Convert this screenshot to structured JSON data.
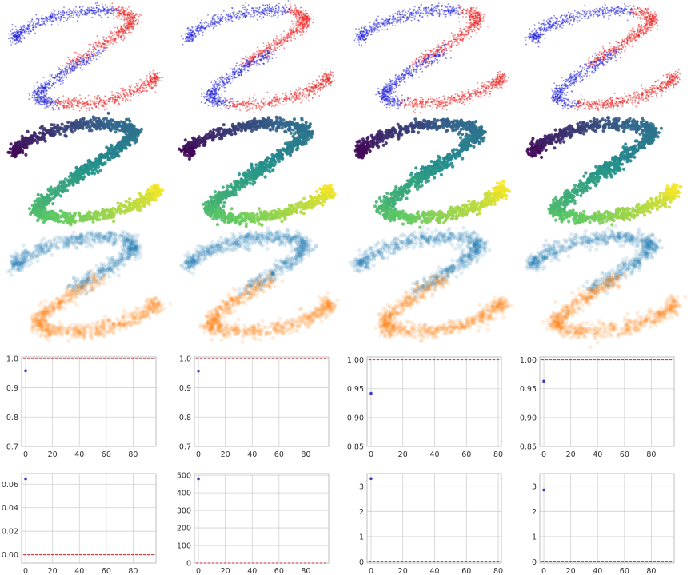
{
  "colors": {
    "red_class": "#ee2222",
    "blue_class": "#2222dd",
    "viridis": [
      "#440154",
      "#31688e",
      "#21918c",
      "#5ec962",
      "#fde725"
    ],
    "tab_blue": "#1f77b4",
    "tab_orange": "#ff7f0e",
    "point_marker": "#3a3ac8",
    "reference_line": "#d62728",
    "grid": "#d0d0d0"
  },
  "scatter_rows": [
    {
      "style": "interleaved-spirals-red-blue",
      "panels": 4
    },
    {
      "style": "spiral-gradient-viridis",
      "panels": 4
    },
    {
      "style": "spiral-two-class-tab10-translucent",
      "panels": 4
    }
  ],
  "chart_data": [
    {
      "type": "scatter",
      "row": "accuracy",
      "col": 0,
      "x": [
        0
      ],
      "y": [
        0.958
      ],
      "hline": 1.0,
      "xlim": [
        -3,
        97
      ],
      "ylim": [
        0.7,
        1.005
      ],
      "xticks": [
        "0",
        "20",
        "40",
        "60",
        "80"
      ],
      "yticks": [
        "0.7",
        "0.8",
        "0.9",
        "1.0"
      ],
      "grid": true
    },
    {
      "type": "scatter",
      "row": "accuracy",
      "col": 1,
      "x": [
        0
      ],
      "y": [
        0.957
      ],
      "hline": 1.0,
      "xlim": [
        -3,
        97
      ],
      "ylim": [
        0.7,
        1.005
      ],
      "xticks": [
        "0",
        "20",
        "40",
        "60",
        "80"
      ],
      "yticks": [
        "0.7",
        "0.8",
        "0.9",
        "1.0"
      ],
      "grid": true
    },
    {
      "type": "scatter",
      "row": "accuracy",
      "col": 2,
      "x": [
        0
      ],
      "y": [
        0.942
      ],
      "hline": 1.0,
      "xlim": [
        -2.5,
        82
      ],
      "ylim": [
        0.85,
        1.005
      ],
      "xticks": [
        "0",
        "20",
        "40",
        "60",
        "80"
      ],
      "yticks": [
        "0.85",
        "0.90",
        "0.95",
        "1.00"
      ],
      "grid": true
    },
    {
      "type": "scatter",
      "row": "accuracy",
      "col": 3,
      "x": [
        0
      ],
      "y": [
        0.963
      ],
      "hline": 1.0,
      "xlim": [
        -3,
        97
      ],
      "ylim": [
        0.85,
        1.005
      ],
      "xticks": [
        "0",
        "20",
        "40",
        "60",
        "80"
      ],
      "yticks": [
        "0.85",
        "0.90",
        "0.95",
        "1.00"
      ],
      "grid": true
    },
    {
      "type": "scatter",
      "row": "loss",
      "col": 0,
      "x": [
        0
      ],
      "y": [
        0.0645
      ],
      "hline": 0.0,
      "xlim": [
        -3,
        97
      ],
      "ylim": [
        -0.007,
        0.069
      ],
      "xticks": [
        "0",
        "20",
        "40",
        "60",
        "80"
      ],
      "yticks": [
        "0.00",
        "0.02",
        "0.04",
        "0.06"
      ],
      "grid": true
    },
    {
      "type": "scatter",
      "row": "loss",
      "col": 1,
      "x": [
        0
      ],
      "y": [
        480
      ],
      "hline": 0.0,
      "xlim": [
        -3,
        97
      ],
      "ylim": [
        0,
        510
      ],
      "xticks": [
        "0",
        "20",
        "40",
        "60",
        "80"
      ],
      "yticks": [
        "0",
        "100",
        "200",
        "300",
        "400",
        "500"
      ],
      "grid": true
    },
    {
      "type": "scatter",
      "row": "loss",
      "col": 2,
      "x": [
        0
      ],
      "y": [
        3.3
      ],
      "hline": 0.0,
      "xlim": [
        -2.5,
        82
      ],
      "ylim": [
        -0.05,
        3.5
      ],
      "xticks": [
        "0",
        "20",
        "40",
        "60",
        "80"
      ],
      "yticks": [
        "0",
        "1",
        "2",
        "3"
      ],
      "grid": true
    },
    {
      "type": "scatter",
      "row": "loss",
      "col": 3,
      "x": [
        0
      ],
      "y": [
        2.85
      ],
      "hline": 0.0,
      "xlim": [
        -3,
        97
      ],
      "ylim": [
        -0.05,
        3.5
      ],
      "xticks": [
        "0",
        "20",
        "40",
        "60",
        "80"
      ],
      "yticks": [
        "0",
        "1",
        "2",
        "3"
      ],
      "grid": true
    }
  ]
}
